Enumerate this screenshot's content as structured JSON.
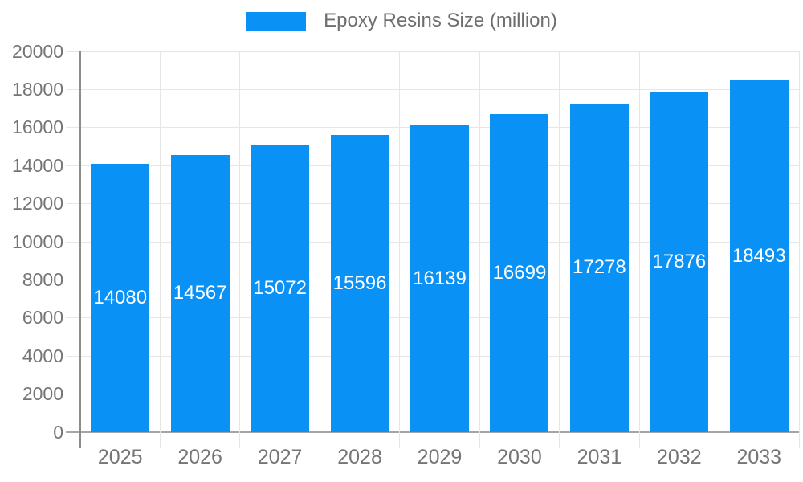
{
  "chart": {
    "legend": {
      "label": "Epoxy Resins Size (million)"
    },
    "colors": {
      "background": "#ffffff",
      "bar": "#0991f6",
      "grid": "#e6e6e6",
      "axis": "#8c8c8c",
      "baseline": "#a6a6a6",
      "tick_text": "#757575",
      "legend_text": "#6e6e6e",
      "value_text": "#ffffff"
    }
  },
  "chart_data": {
    "type": "bar",
    "title": "Epoxy Resins Size (million)",
    "xlabel": "",
    "ylabel": "",
    "categories": [
      "2025",
      "2026",
      "2027",
      "2028",
      "2029",
      "2030",
      "2031",
      "2032",
      "2033"
    ],
    "series": [
      {
        "name": "Epoxy Resins Size (million)",
        "values": [
          14080,
          14567,
          15072,
          15596,
          16139,
          16699,
          17278,
          17876,
          18493
        ]
      }
    ],
    "ylim": [
      0,
      20000
    ],
    "ytick_step": 2000,
    "ytick_labels": [
      "0",
      "2000",
      "4000",
      "6000",
      "8000",
      "10000",
      "12000",
      "14000",
      "16000",
      "18000",
      "20000"
    ],
    "grid": true,
    "legend_position": "top-center",
    "value_labels_position": "inside-center"
  }
}
